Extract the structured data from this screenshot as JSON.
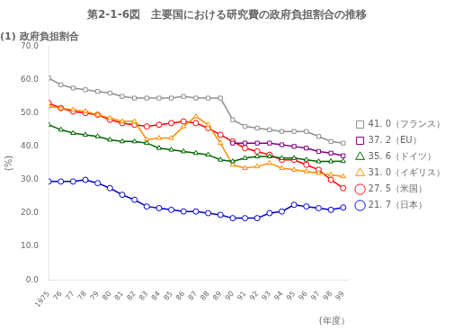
{
  "chart_data": {
    "type": "line",
    "title": "第2-1-6図　主要国における研究費の政府負担割合の推移",
    "subtitle": "(1) 政府負担割合",
    "x_label": "(年度）",
    "y_label": "(%)",
    "x": [
      1975,
      1976,
      1977,
      1978,
      1979,
      1980,
      1981,
      1982,
      1983,
      1984,
      1985,
      1986,
      1987,
      1988,
      1989,
      1990,
      1991,
      1992,
      1993,
      1994,
      1995,
      1996,
      1997,
      1998,
      1999
    ],
    "xlim": [
      1975,
      1999.5
    ],
    "xticks": [
      1975,
      {
        "value": 1976,
        "label": "76"
      },
      {
        "value": 1977,
        "label": "77"
      },
      {
        "value": 1978,
        "label": "78"
      },
      {
        "value": 1979,
        "label": "79"
      },
      {
        "value": 1980,
        "label": "80"
      },
      {
        "value": 1981,
        "label": "81"
      },
      {
        "value": 1982,
        "label": "82"
      },
      {
        "value": 1983,
        "label": "83"
      },
      {
        "value": 1984,
        "label": "84"
      },
      {
        "value": 1985,
        "label": "85"
      },
      {
        "value": 1986,
        "label": "86"
      },
      {
        "value": 1987,
        "label": "87"
      },
      {
        "value": 1988,
        "label": "88"
      },
      {
        "value": 1989,
        "label": "89"
      },
      {
        "value": 1990,
        "label": "90"
      },
      {
        "value": 1991,
        "label": "91"
      },
      {
        "value": 1992,
        "label": "92"
      },
      {
        "value": 1993,
        "label": "93"
      },
      {
        "value": 1994,
        "label": "94"
      },
      {
        "value": 1995,
        "label": "95"
      },
      {
        "value": 1996,
        "label": "96"
      },
      {
        "value": 1997,
        "label": "97"
      },
      {
        "value": 1998,
        "label": "98"
      },
      {
        "value": 1999,
        "label": "99"
      }
    ],
    "ylim": [
      0,
      70
    ],
    "yticks": [
      {
        "value": 0,
        "label": "0.0"
      },
      {
        "value": 10,
        "label": "10.0"
      },
      {
        "value": 20,
        "label": "20.0"
      },
      {
        "value": 30,
        "label": "30.0"
      },
      {
        "value": 40,
        "label": "40.0"
      },
      {
        "value": 50,
        "label": "50.0"
      },
      {
        "value": 60,
        "label": "60.0"
      },
      {
        "value": 70,
        "label": "70.0"
      }
    ],
    "grid": false,
    "legend": "right",
    "series": [
      {
        "name": "41. 0（フランス）",
        "color": "#909090",
        "marker": "square",
        "values": [
          60.5,
          58.5,
          57.5,
          57.0,
          56.5,
          56.0,
          55.0,
          54.5,
          54.5,
          54.5,
          54.5,
          55.0,
          54.5,
          54.5,
          54.5,
          48.0,
          46.0,
          45.5,
          45.0,
          44.5,
          44.5,
          44.5,
          43.0,
          41.5,
          41.0
        ]
      },
      {
        "name": "37. 2（EU）",
        "color": "#800080",
        "marker": "square",
        "values": [
          null,
          null,
          null,
          null,
          null,
          null,
          null,
          null,
          null,
          null,
          null,
          null,
          null,
          null,
          null,
          41.0,
          41.0,
          41.0,
          41.0,
          40.5,
          40.0,
          39.5,
          38.5,
          38.0,
          37.2
        ]
      },
      {
        "name": "35. 6（ドイツ）",
        "color": "#006400",
        "marker": "triangle",
        "values": [
          46.5,
          45.0,
          44.0,
          43.5,
          43.0,
          42.0,
          41.5,
          41.5,
          41.0,
          39.5,
          39.0,
          38.5,
          38.0,
          37.5,
          36.0,
          35.5,
          36.5,
          37.0,
          37.0,
          36.5,
          36.5,
          36.0,
          35.5,
          35.5,
          35.6
        ]
      },
      {
        "name": "31. 0（イギリス）",
        "color": "#FF8C00",
        "marker": "triangle",
        "values": [
          52.0,
          51.5,
          51.0,
          50.5,
          49.5,
          48.5,
          47.5,
          47.5,
          42.0,
          42.5,
          42.5,
          46.0,
          49.0,
          46.5,
          41.0,
          34.5,
          33.5,
          34.0,
          35.0,
          33.5,
          33.0,
          32.5,
          32.0,
          31.5,
          31.0
        ]
      },
      {
        "name": "27. 5（米国）",
        "color": "#FF0000",
        "marker": "circle",
        "values": [
          53.0,
          51.5,
          50.5,
          50.0,
          49.5,
          48.0,
          47.0,
          46.5,
          46.0,
          46.5,
          47.0,
          47.5,
          47.0,
          45.5,
          43.5,
          41.5,
          39.5,
          38.5,
          37.5,
          36.0,
          36.0,
          34.5,
          33.0,
          30.0,
          27.5
        ]
      },
      {
        "name": "21. 7（日本）",
        "color": "#0000CD",
        "marker": "circle",
        "values": [
          29.5,
          29.5,
          29.5,
          30.0,
          29.0,
          27.5,
          25.5,
          24.0,
          22.0,
          21.5,
          21.0,
          20.5,
          20.5,
          20.0,
          19.5,
          18.5,
          18.5,
          18.5,
          20.0,
          20.5,
          22.5,
          22.0,
          21.5,
          21.0,
          21.7
        ]
      }
    ]
  }
}
